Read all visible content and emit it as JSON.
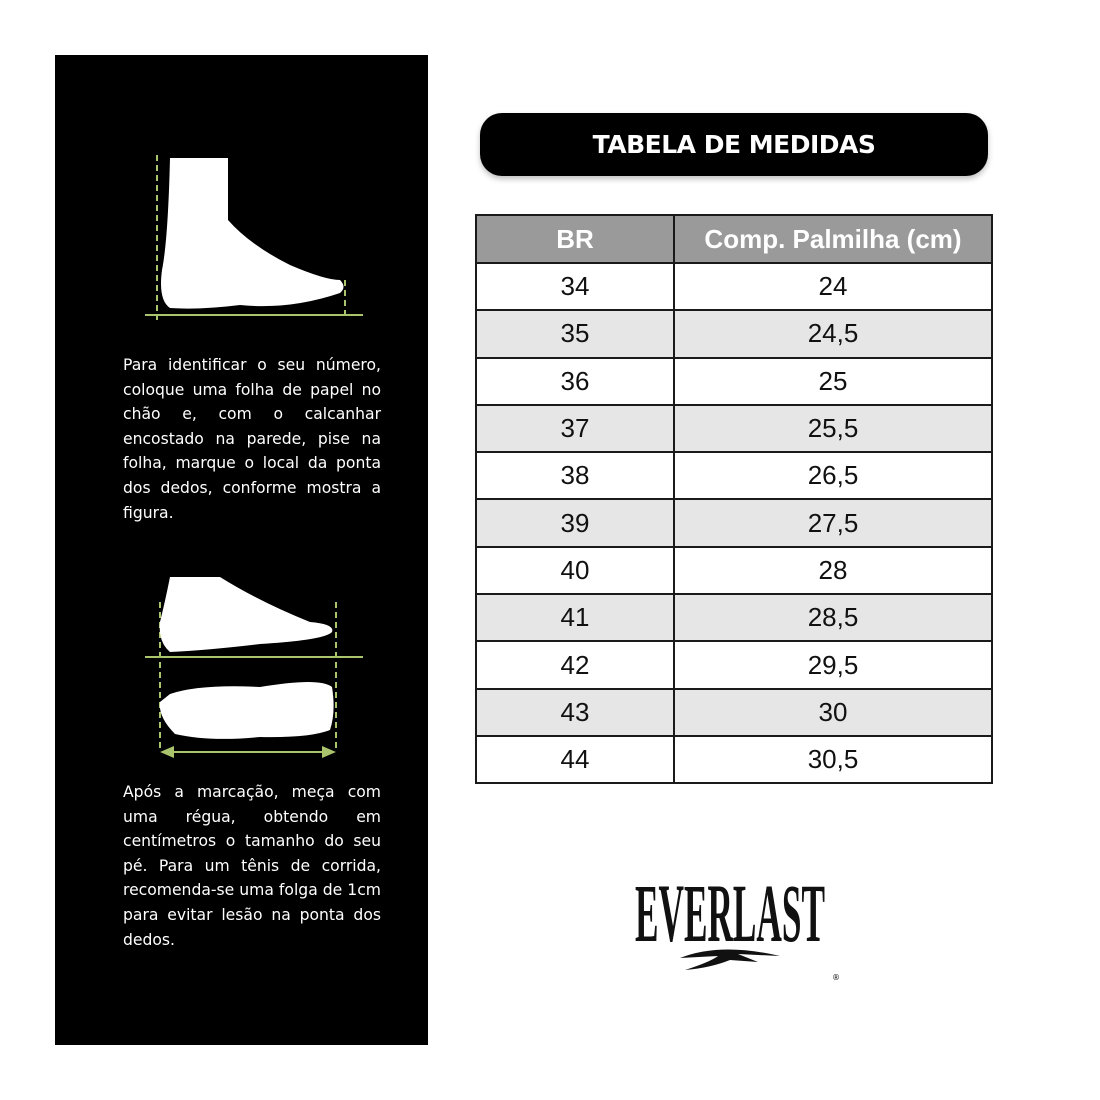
{
  "instructions": {
    "step1": "Para identificar o seu número, coloque uma folha de papel no chão e, com o calcanhar encostado na parede, pise na folha, marque o local da ponta dos dedos, conforme mostra a figura.",
    "step2": "Após a marcação, meça com uma régua, obtendo em centímetros o tamanho do seu pé. Para um tênis de corrida, recomenda-se uma folga de 1cm para evitar lesão na ponta dos dedos."
  },
  "title": "TABELA DE MEDIDAS",
  "table": {
    "headers": [
      "BR",
      "Comp. Palmilha (cm)"
    ],
    "rows": [
      [
        "34",
        "24"
      ],
      [
        "35",
        "24,5"
      ],
      [
        "36",
        "25"
      ],
      [
        "37",
        "25,5"
      ],
      [
        "38",
        "26,5"
      ],
      [
        "39",
        "27,5"
      ],
      [
        "40",
        "28"
      ],
      [
        "41",
        "28,5"
      ],
      [
        "42",
        "29,5"
      ],
      [
        "43",
        "30"
      ],
      [
        "44",
        "30,5"
      ]
    ]
  },
  "brand": {
    "name": "EVERLAST",
    "registered": "®"
  },
  "colors": {
    "guide_line": "#a9c46c",
    "header_bg": "#9a9a9a",
    "row_alt": "#e6e6e6"
  }
}
